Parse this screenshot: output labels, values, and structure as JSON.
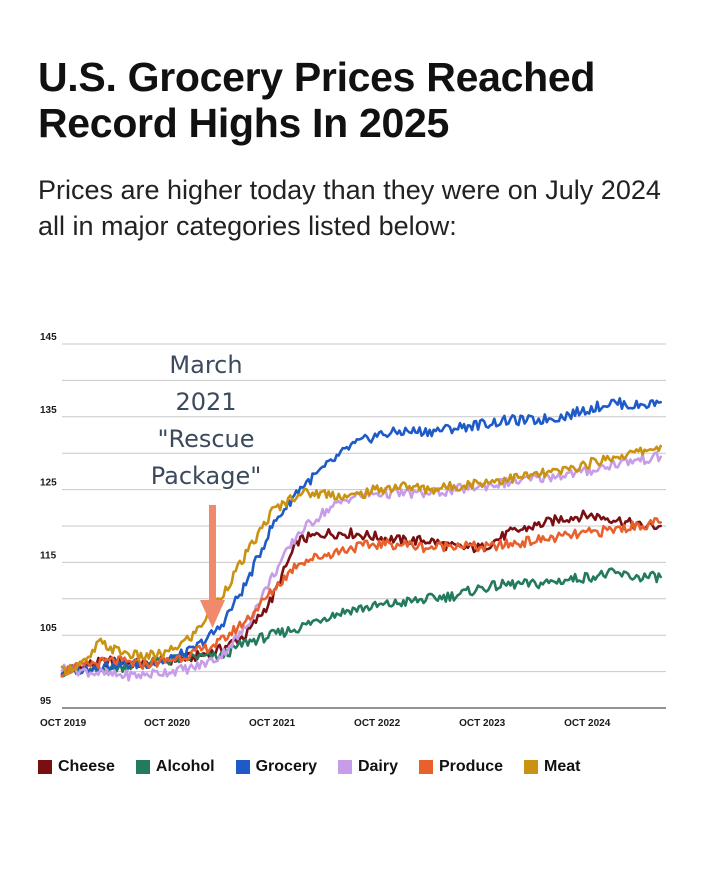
{
  "title": "U.S. Grocery Prices Reached Record Highs In 2025",
  "subtitle": "Prices are higher today than they were on July 2024 all in major categories listed below:",
  "annotation": {
    "lines": [
      "March",
      "2021",
      "\"Rescue",
      "Package\""
    ],
    "color": "#f08a6a"
  },
  "chart_data": {
    "type": "line",
    "title": "U.S. Grocery Prices Reached Record Highs In 2025",
    "xlabel": "",
    "ylabel": "",
    "x_ticks": [
      "OCT 2019",
      "OCT 2020",
      "OCT 2021",
      "OCT 2022",
      "OCT 2023",
      "OCT 2024"
    ],
    "y_ticks": [
      145,
      135,
      125,
      115,
      105,
      95
    ],
    "ylim": [
      95,
      145
    ],
    "xlim": [
      2019.75,
      2025.5
    ],
    "grid": true,
    "legend_position": "bottom",
    "series": [
      {
        "name": "Cheese",
        "color": "#7a0f12",
        "points": [
          [
            2019.75,
            100
          ],
          [
            2020.0,
            101
          ],
          [
            2020.25,
            101.5
          ],
          [
            2020.5,
            101
          ],
          [
            2020.75,
            101.5
          ],
          [
            2021.0,
            102
          ],
          [
            2021.25,
            103
          ],
          [
            2021.5,
            105
          ],
          [
            2021.75,
            110
          ],
          [
            2021.9,
            115
          ],
          [
            2022.0,
            118
          ],
          [
            2022.25,
            119
          ],
          [
            2022.5,
            119
          ],
          [
            2022.75,
            118.5
          ],
          [
            2023.0,
            118
          ],
          [
            2023.25,
            118
          ],
          [
            2023.5,
            117
          ],
          [
            2023.75,
            117
          ],
          [
            2024.0,
            119
          ],
          [
            2024.25,
            120
          ],
          [
            2024.5,
            121
          ],
          [
            2024.75,
            121.5
          ],
          [
            2025.0,
            121
          ],
          [
            2025.25,
            120
          ],
          [
            2025.45,
            120
          ]
        ]
      },
      {
        "name": "Alcohol",
        "color": "#237a5c",
        "points": [
          [
            2019.75,
            100
          ],
          [
            2020.0,
            100
          ],
          [
            2020.25,
            100.5
          ],
          [
            2020.5,
            101
          ],
          [
            2020.75,
            101.5
          ],
          [
            2021.0,
            102
          ],
          [
            2021.25,
            102
          ],
          [
            2021.5,
            104
          ],
          [
            2021.75,
            105
          ],
          [
            2022.0,
            106
          ],
          [
            2022.25,
            107.5
          ],
          [
            2022.5,
            108.5
          ],
          [
            2022.75,
            109
          ],
          [
            2023.0,
            109.5
          ],
          [
            2023.25,
            110
          ],
          [
            2023.5,
            110.5
          ],
          [
            2023.75,
            111.5
          ],
          [
            2024.0,
            112
          ],
          [
            2024.25,
            112
          ],
          [
            2024.5,
            112.5
          ],
          [
            2024.75,
            113
          ],
          [
            2025.0,
            113.5
          ],
          [
            2025.2,
            113
          ],
          [
            2025.45,
            113
          ]
        ]
      },
      {
        "name": "Grocery",
        "color": "#1f5bc8",
        "points": [
          [
            2019.75,
            100
          ],
          [
            2020.0,
            100.5
          ],
          [
            2020.25,
            101
          ],
          [
            2020.5,
            101
          ],
          [
            2020.75,
            101.5
          ],
          [
            2021.0,
            103
          ],
          [
            2021.25,
            106
          ],
          [
            2021.5,
            112
          ],
          [
            2021.75,
            120
          ],
          [
            2022.0,
            125
          ],
          [
            2022.25,
            128
          ],
          [
            2022.5,
            131
          ],
          [
            2022.75,
            132.5
          ],
          [
            2023.0,
            133
          ],
          [
            2023.25,
            133
          ],
          [
            2023.5,
            133.5
          ],
          [
            2023.75,
            134
          ],
          [
            2024.0,
            134.5
          ],
          [
            2024.25,
            134.5
          ],
          [
            2024.5,
            135
          ],
          [
            2024.75,
            136
          ],
          [
            2025.0,
            137
          ],
          [
            2025.2,
            136.5
          ],
          [
            2025.45,
            137
          ]
        ]
      },
      {
        "name": "Dairy",
        "color": "#c79ce8",
        "points": [
          [
            2019.75,
            100.5
          ],
          [
            2020.0,
            100
          ],
          [
            2020.25,
            99.5
          ],
          [
            2020.5,
            99.5
          ],
          [
            2020.75,
            100
          ],
          [
            2021.0,
            100.5
          ],
          [
            2021.25,
            102
          ],
          [
            2021.5,
            106
          ],
          [
            2021.75,
            113
          ],
          [
            2022.0,
            119
          ],
          [
            2022.25,
            122
          ],
          [
            2022.5,
            124
          ],
          [
            2022.75,
            124.5
          ],
          [
            2023.0,
            124.5
          ],
          [
            2023.25,
            124.5
          ],
          [
            2023.5,
            125
          ],
          [
            2023.75,
            125.5
          ],
          [
            2024.0,
            126
          ],
          [
            2024.25,
            126.5
          ],
          [
            2024.5,
            127
          ],
          [
            2024.75,
            127.5
          ],
          [
            2025.0,
            128.5
          ],
          [
            2025.2,
            129
          ],
          [
            2025.45,
            129.5
          ]
        ]
      },
      {
        "name": "Produce",
        "color": "#e8602c",
        "points": [
          [
            2019.75,
            100
          ],
          [
            2020.0,
            101
          ],
          [
            2020.25,
            101.5
          ],
          [
            2020.5,
            101
          ],
          [
            2020.75,
            101.5
          ],
          [
            2021.0,
            102.5
          ],
          [
            2021.25,
            104
          ],
          [
            2021.5,
            107
          ],
          [
            2021.75,
            111
          ],
          [
            2022.0,
            115
          ],
          [
            2022.25,
            116
          ],
          [
            2022.5,
            117
          ],
          [
            2022.75,
            117.5
          ],
          [
            2023.0,
            117.5
          ],
          [
            2023.25,
            117
          ],
          [
            2023.5,
            117.5
          ],
          [
            2023.75,
            117
          ],
          [
            2024.0,
            117.5
          ],
          [
            2024.25,
            118
          ],
          [
            2024.5,
            118.5
          ],
          [
            2024.75,
            119
          ],
          [
            2025.0,
            119.5
          ],
          [
            2025.2,
            120
          ],
          [
            2025.45,
            120.5
          ]
        ]
      },
      {
        "name": "Meat",
        "color": "#c99211",
        "points": [
          [
            2019.75,
            100
          ],
          [
            2020.0,
            101.5
          ],
          [
            2020.1,
            104
          ],
          [
            2020.25,
            103
          ],
          [
            2020.5,
            102
          ],
          [
            2020.75,
            102.5
          ],
          [
            2021.0,
            105
          ],
          [
            2021.25,
            110
          ],
          [
            2021.5,
            116
          ],
          [
            2021.75,
            122
          ],
          [
            2022.0,
            124.5
          ],
          [
            2022.25,
            124.5
          ],
          [
            2022.5,
            124
          ],
          [
            2022.75,
            125
          ],
          [
            2023.0,
            125.5
          ],
          [
            2023.25,
            125
          ],
          [
            2023.5,
            125.5
          ],
          [
            2023.75,
            126
          ],
          [
            2024.0,
            126.5
          ],
          [
            2024.25,
            127
          ],
          [
            2024.5,
            127.5
          ],
          [
            2024.75,
            128.5
          ],
          [
            2025.0,
            129.5
          ],
          [
            2025.2,
            130
          ],
          [
            2025.45,
            131
          ]
        ]
      }
    ]
  }
}
